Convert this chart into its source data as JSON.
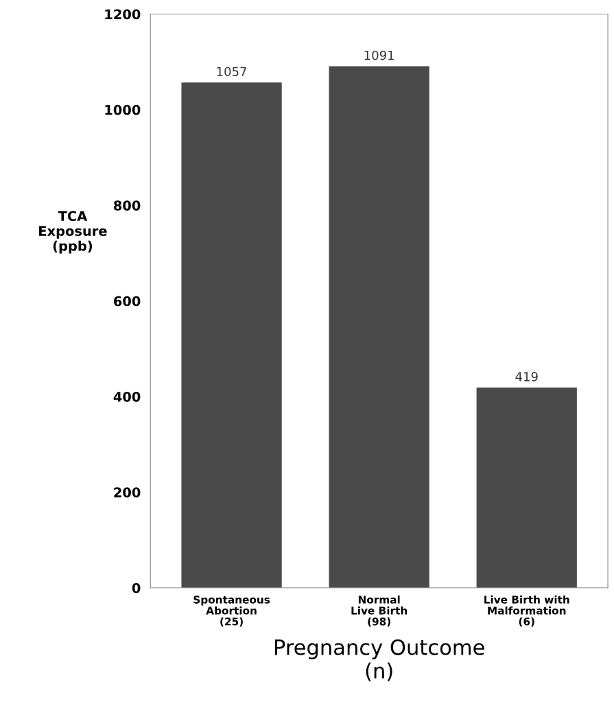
{
  "chart_data": {
    "type": "bar",
    "xlabel": "Pregnancy Outcome\n(n)",
    "ylabel": "TCA\nExposure\n(ppb)",
    "categories": [
      "Spontaneous\nAbortion\n(25)",
      "Normal\nLive Birth\n(98)",
      "Live Birth with\nMalformation\n(6)"
    ],
    "values": [
      1057,
      1091,
      419
    ],
    "color": "#4a4a4a",
    "ylim": [
      0,
      1200
    ],
    "yticks": [
      0,
      200,
      400,
      600,
      800,
      1000,
      1200
    ],
    "data_labels": true,
    "grid": false
  }
}
